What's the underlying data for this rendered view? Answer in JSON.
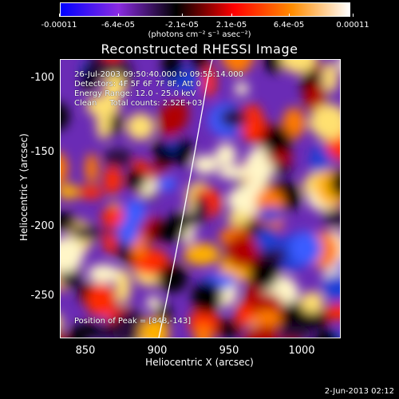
{
  "colorbar": {
    "tick_labels": [
      "-0.00011",
      "-6.4e-05",
      "-2.1e-05",
      "2.1e-05",
      "6.4e-05",
      "0.00011"
    ],
    "units": "(photons cm⁻² s⁻¹ asec⁻²)",
    "colors": [
      "#0000ff",
      "#8a2be2",
      "#000000",
      "#ff0000",
      "#ff8c00",
      "#ffffff"
    ]
  },
  "title": "Reconstructed RHESSI Image",
  "info": {
    "time_range": "26-Jul-2003 09:50:40.000 to 09:55:14.000",
    "detectors": "Detectors: 4F 5F 6F 7F 8F, Att 0",
    "energy": "Energy Range: 12.0 - 25.0 keV",
    "method": "Clean     Total counts: 2.52E+03",
    "peak": "Position of Peak = [848,-143]"
  },
  "axes": {
    "xlabel": "Heliocentric X (arcsec)",
    "ylabel": "Heliocentric Y (arcsec)",
    "xticks": [
      "850",
      "900",
      "950",
      "1000"
    ],
    "yticks": [
      "-100",
      "-150",
      "-200",
      "-250"
    ]
  },
  "datestamp": "2-Jun-2013 02:12"
}
